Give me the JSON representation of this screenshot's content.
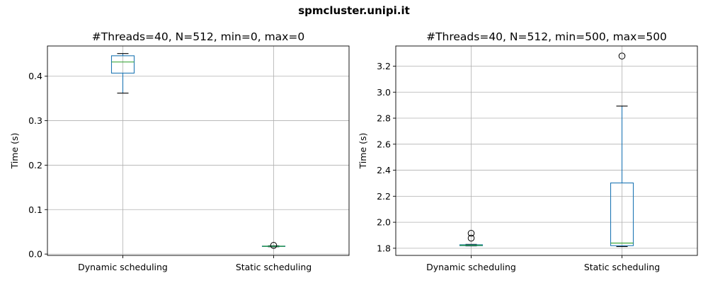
{
  "figure": {
    "suptitle": "spmcluster.unipi.it"
  },
  "chart_data": [
    {
      "type": "box",
      "title": "#Threads=40, N=512, min=0, max=0",
      "ylabel": "Time (s)",
      "categories": [
        "Dynamic scheduling",
        "Static scheduling"
      ],
      "ylim": [
        -0.003,
        0.468
      ],
      "yticks": [
        0.0,
        0.1,
        0.2,
        0.3,
        0.4
      ],
      "ytick_labels": [
        "0.0",
        "0.1",
        "0.2",
        "0.3",
        "0.4"
      ],
      "grid": true,
      "boxes": [
        {
          "name": "Dynamic scheduling",
          "whislo": 0.362,
          "q1": 0.407,
          "med": 0.432,
          "q3": 0.446,
          "whishi": 0.451,
          "fliers": []
        },
        {
          "name": "Static scheduling",
          "whislo": 0.0165,
          "q1": 0.0172,
          "med": 0.0176,
          "q3": 0.018,
          "whishi": 0.0186,
          "fliers": [
            0.0195
          ]
        }
      ]
    },
    {
      "type": "box",
      "title": "#Threads=40, N=512, min=500, max=500",
      "ylabel": "Time (s)",
      "categories": [
        "Dynamic scheduling",
        "Static scheduling"
      ],
      "ylim": [
        1.745,
        3.355
      ],
      "yticks": [
        1.8,
        2.0,
        2.2,
        2.4,
        2.6,
        2.8,
        3.0,
        3.2
      ],
      "ytick_labels": [
        "1.8",
        "2.0",
        "2.2",
        "2.4",
        "2.6",
        "2.8",
        "3.0",
        "3.2"
      ],
      "grid": true,
      "boxes": [
        {
          "name": "Dynamic scheduling",
          "whislo": 1.818,
          "q1": 1.82,
          "med": 1.823,
          "q3": 1.827,
          "whishi": 1.83,
          "fliers": [
            1.878,
            1.915
          ]
        },
        {
          "name": "Static scheduling",
          "whislo": 1.813,
          "q1": 1.82,
          "med": 1.84,
          "q3": 2.302,
          "whishi": 2.893,
          "fliers": [
            3.278
          ]
        }
      ]
    }
  ]
}
